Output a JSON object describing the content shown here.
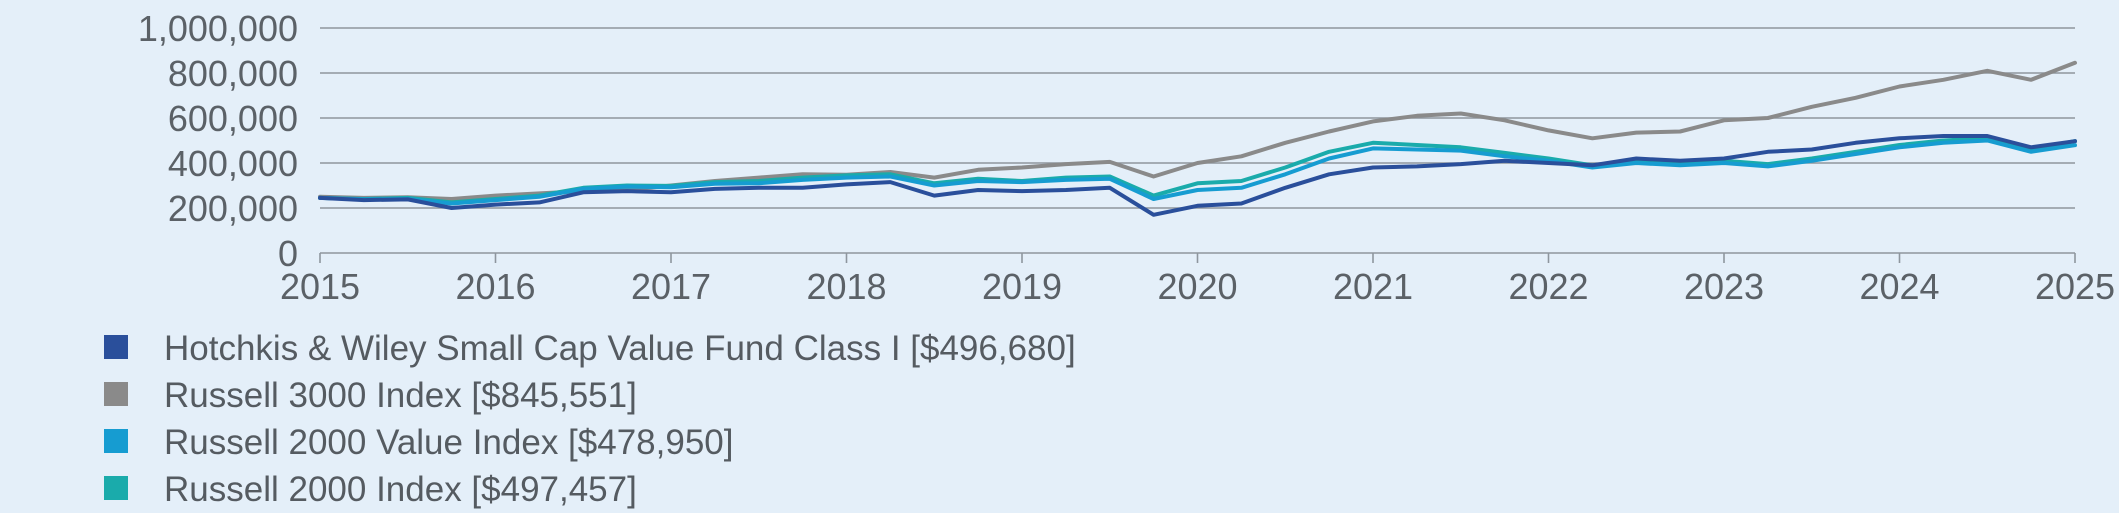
{
  "chart_data": {
    "type": "line",
    "ylim": [
      0,
      1000000
    ],
    "y_ticks": [
      "1,000,000",
      "800,000",
      "600,000",
      "400,000",
      "200,000",
      "0"
    ],
    "y_tick_values": [
      1000000,
      800000,
      600000,
      400000,
      200000,
      0
    ],
    "xlim": [
      2015,
      2025
    ],
    "x_ticks": [
      "2015",
      "2016",
      "2017",
      "2018",
      "2019",
      "2020",
      "2021",
      "2022",
      "2023",
      "2024",
      "2025"
    ],
    "x_tick_values": [
      2015,
      2016,
      2017,
      2018,
      2019,
      2020,
      2021,
      2022,
      2023,
      2024,
      2025
    ],
    "grid": true,
    "legend_position": "bottom",
    "series": [
      {
        "name": "Russell 3000 Index [$845,551]",
        "color": "#8a8a8a",
        "x": [
          2015,
          2015.25,
          2015.5,
          2015.75,
          2016,
          2016.25,
          2016.5,
          2016.75,
          2017,
          2017.25,
          2017.5,
          2017.75,
          2018,
          2018.25,
          2018.5,
          2018.75,
          2019,
          2019.25,
          2019.5,
          2019.75,
          2020,
          2020.25,
          2020.5,
          2020.75,
          2021,
          2021.25,
          2021.5,
          2021.75,
          2022,
          2022.25,
          2022.5,
          2022.75,
          2023,
          2023.25,
          2023.5,
          2023.75,
          2024,
          2024.25,
          2024.5,
          2024.75,
          2025
        ],
        "y": [
          250000,
          245000,
          248000,
          240000,
          255000,
          265000,
          275000,
          280000,
          300000,
          320000,
          335000,
          350000,
          348000,
          360000,
          335000,
          370000,
          380000,
          395000,
          405000,
          340000,
          400000,
          430000,
          490000,
          540000,
          585000,
          610000,
          620000,
          590000,
          545000,
          510000,
          535000,
          540000,
          590000,
          600000,
          650000,
          690000,
          740000,
          770000,
          810000,
          770000,
          845551
        ]
      },
      {
        "name": "Russell 2000 Index [$497,457]",
        "color": "#1aabab",
        "x": [
          2015,
          2015.25,
          2015.5,
          2015.75,
          2016,
          2016.25,
          2016.5,
          2016.75,
          2017,
          2017.25,
          2017.5,
          2017.75,
          2018,
          2018.25,
          2018.5,
          2018.75,
          2019,
          2019.25,
          2019.5,
          2019.75,
          2020,
          2020.25,
          2020.5,
          2020.75,
          2021,
          2021.25,
          2021.5,
          2021.75,
          2022,
          2022.25,
          2022.5,
          2022.75,
          2023,
          2023.25,
          2023.5,
          2023.75,
          2024,
          2024.25,
          2024.5,
          2024.75,
          2025
        ],
        "y": [
          245000,
          240000,
          245000,
          225000,
          240000,
          255000,
          290000,
          300000,
          298000,
          315000,
          320000,
          335000,
          345000,
          350000,
          310000,
          330000,
          320000,
          335000,
          340000,
          255000,
          310000,
          320000,
          380000,
          450000,
          490000,
          480000,
          470000,
          445000,
          420000,
          390000,
          410000,
          400000,
          410000,
          395000,
          420000,
          450000,
          480000,
          500000,
          510000,
          460000,
          497457
        ]
      },
      {
        "name": "Russell 2000 Value Index [$478,950]",
        "color": "#169cd1",
        "x": [
          2015,
          2015.25,
          2015.5,
          2015.75,
          2016,
          2016.25,
          2016.5,
          2016.75,
          2017,
          2017.25,
          2017.5,
          2017.75,
          2018,
          2018.25,
          2018.5,
          2018.75,
          2019,
          2019.25,
          2019.5,
          2019.75,
          2020,
          2020.25,
          2020.5,
          2020.75,
          2021,
          2021.25,
          2021.5,
          2021.75,
          2022,
          2022.25,
          2022.5,
          2022.75,
          2023,
          2023.25,
          2023.5,
          2023.75,
          2024,
          2024.25,
          2024.5,
          2024.75,
          2025
        ],
        "y": [
          245000,
          238000,
          240000,
          220000,
          235000,
          250000,
          285000,
          295000,
          292000,
          308000,
          310000,
          325000,
          335000,
          340000,
          300000,
          320000,
          315000,
          325000,
          330000,
          240000,
          280000,
          290000,
          350000,
          420000,
          465000,
          460000,
          455000,
          430000,
          410000,
          380000,
          400000,
          390000,
          400000,
          385000,
          410000,
          440000,
          470000,
          490000,
          500000,
          450000,
          478950
        ]
      },
      {
        "name": "Hotchkis & Wiley Small Cap Value Fund Class I [$496,680]",
        "color": "#2a4f9b",
        "x": [
          2015,
          2015.25,
          2015.5,
          2015.75,
          2016,
          2016.25,
          2016.5,
          2016.75,
          2017,
          2017.25,
          2017.5,
          2017.75,
          2018,
          2018.25,
          2018.5,
          2018.75,
          2019,
          2019.25,
          2019.5,
          2019.75,
          2020,
          2020.25,
          2020.5,
          2020.75,
          2021,
          2021.25,
          2021.5,
          2021.75,
          2022,
          2022.25,
          2022.5,
          2022.75,
          2023,
          2023.25,
          2023.5,
          2023.75,
          2024,
          2024.25,
          2024.5,
          2024.75,
          2025
        ],
        "y": [
          245000,
          235000,
          238000,
          200000,
          215000,
          225000,
          270000,
          275000,
          270000,
          285000,
          290000,
          290000,
          305000,
          315000,
          255000,
          280000,
          275000,
          280000,
          290000,
          170000,
          210000,
          220000,
          290000,
          350000,
          380000,
          385000,
          395000,
          410000,
          400000,
          390000,
          420000,
          410000,
          420000,
          450000,
          460000,
          490000,
          510000,
          520000,
          520000,
          470000,
          496680
        ]
      }
    ],
    "legend": [
      {
        "label": "Hotchkis & Wiley Small Cap Value Fund Class I [$496,680]",
        "color": "#2a4f9b"
      },
      {
        "label": "Russell 3000 Index [$845,551]",
        "color": "#8a8a8a"
      },
      {
        "label": "Russell 2000 Value Index [$478,950]",
        "color": "#169cd1"
      },
      {
        "label": "Russell 2000 Index [$497,457]",
        "color": "#1aabab"
      }
    ]
  }
}
